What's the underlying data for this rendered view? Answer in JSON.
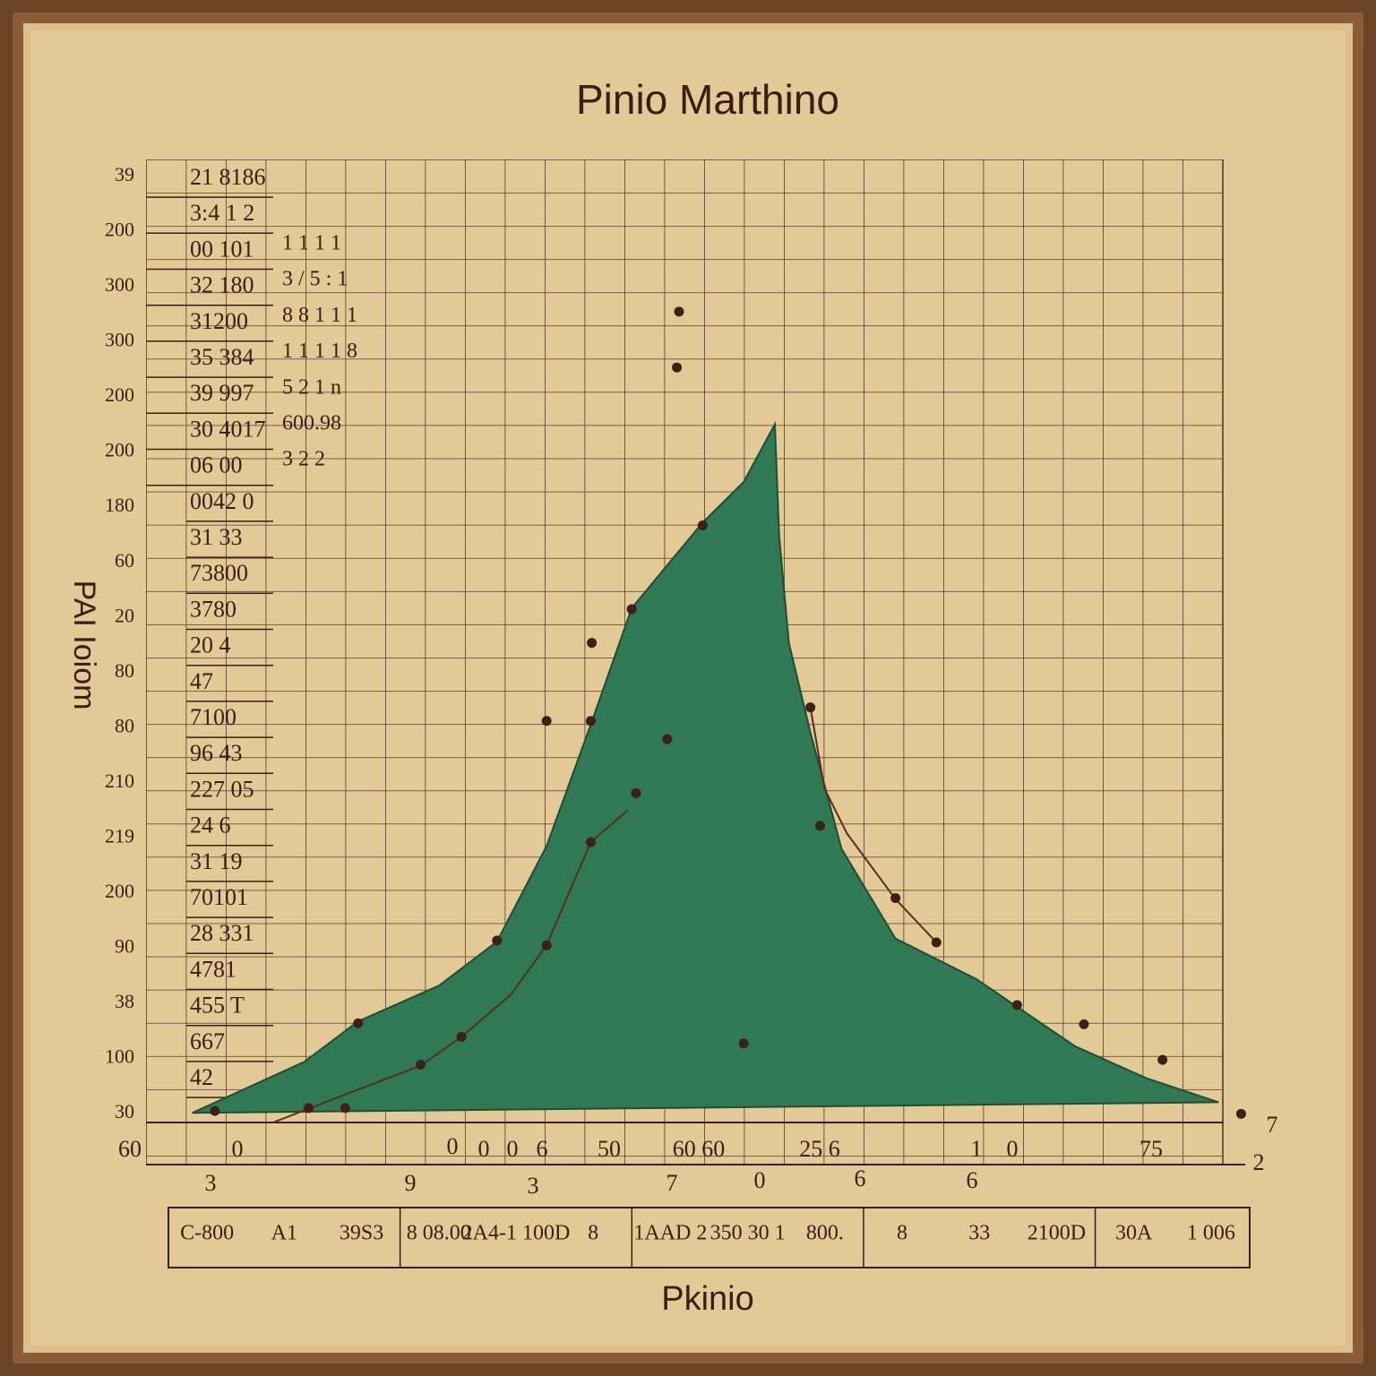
{
  "chart_data": {
    "type": "area",
    "title": "Pinio Marthino",
    "x_label": "Pkinio",
    "y_label": "PAI Ioiom",
    "xlim": [
      0,
      100
    ],
    "ylim": [
      0,
      100
    ],
    "grid": true,
    "y_axis_labels": [
      "39",
      "200",
      "300",
      "300",
      "200",
      "200",
      "180",
      "60",
      "20",
      "80",
      "80",
      "210",
      "219",
      "200",
      "90",
      "38",
      "100",
      "30"
    ],
    "row_labels": [
      "21 8186",
      "3:4 1 2",
      "00 101",
      "32 180",
      "31200",
      "35 384",
      "39 997",
      "30 4017",
      "06 00",
      "0042 0",
      "31 33",
      "73800",
      "3780",
      "20 4",
      "47",
      "7100",
      "96 43",
      "227 05",
      "24 6",
      "31 19",
      "70101",
      "28 331",
      "4781",
      "455 T",
      "667",
      "42"
    ],
    "row_labels_2": [
      "1 1 1 1",
      "3 / 5 : 1",
      "8 8 1 1 1",
      "1 1 1 1 8",
      "5 2 1 n",
      "600.98",
      "3 2 2"
    ],
    "x_axis_labels": [
      "60",
      "0",
      "0",
      "0",
      "0",
      "6",
      "50",
      "60 60",
      "25 6",
      "1",
      "0",
      "75",
      "7",
      "3",
      "9",
      "3",
      "7",
      "0",
      "6",
      "6",
      "2"
    ],
    "footer_cells": [
      "C-800",
      "A1",
      "39S3",
      "8 08.00",
      "2A4-1 100D",
      "8",
      "1AAD 2",
      "350 30 1",
      "800.",
      "8",
      "33",
      "2100D",
      "30A",
      "1 006"
    ],
    "series": [
      {
        "color": "#2f7a55",
        "x": [
          4.3,
          14.7,
          19.7,
          27.2,
          32.6,
          37.2,
          41.3,
          45.1,
          51.7,
          55.5,
          58.4,
          58.8,
          59.7,
          61.7,
          64.6,
          69.6,
          77.1,
          86.3,
          92.9,
          99.6
        ],
        "values": [
          1.0,
          6.3,
          10.5,
          14.2,
          18.8,
          28.7,
          41.3,
          53.4,
          62.3,
          66.5,
          72.5,
          60.9,
          49.8,
          40.5,
          28.4,
          19.1,
          14.9,
          7.9,
          4.6,
          2.1
        ]
      },
      {
        "color": "#5a2e1e",
        "x": [
          11.8,
          18.5,
          25.5,
          29.3,
          33.9,
          37.2,
          41.3,
          44.7
        ],
        "values": [
          0,
          2.9,
          5.9,
          8.9,
          13.3,
          18.4,
          29.1,
          32.4
        ]
      },
      {
        "color": "#5a2e1e",
        "x": [
          61.7,
          63.0,
          65.1,
          69.6,
          73.4
        ],
        "values": [
          43.1,
          34.7,
          30.0,
          23.2,
          18.7
        ]
      }
    ],
    "points": {
      "color": "#3d2116",
      "x": [
        6.4,
        15.1,
        18.5,
        19.7,
        25.5,
        29.3,
        32.6,
        37.2,
        41.3,
        45.5,
        48.4,
        41.3,
        37.2,
        41.4,
        45.1,
        51.7,
        49.3,
        49.5,
        55.5,
        61.7,
        62.6,
        69.6,
        73.4,
        80.9,
        87.1,
        94.4,
        101.7
      ],
      "values": [
        1.2,
        1.5,
        1.5,
        10.3,
        6.0,
        8.9,
        18.9,
        18.4,
        29.1,
        34.2,
        39.8,
        41.7,
        41.7,
        49.8,
        53.3,
        62.0,
        78.4,
        84.2,
        8.2,
        43.1,
        30.8,
        23.3,
        18.7,
        12.2,
        10.2,
        6.5,
        0.9
      ]
    }
  }
}
